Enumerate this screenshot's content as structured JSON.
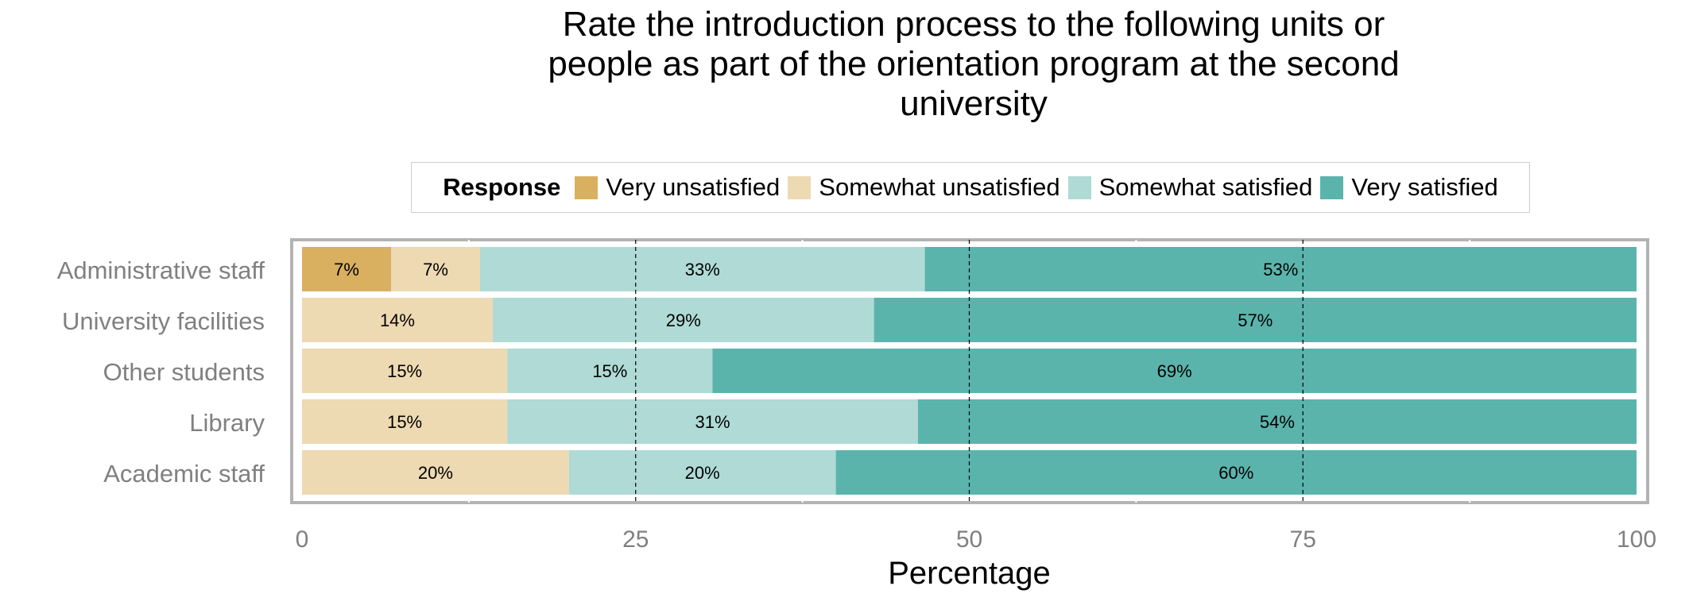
{
  "chart_data": {
    "type": "bar",
    "orientation": "horizontal",
    "stacked": true,
    "title": "Rate the introduction process to the following units or\npeople as part of the orientation program at the second\nuniversity",
    "xlabel": "Percentage",
    "ylabel": "",
    "xlim": [
      0,
      100
    ],
    "xticks": [
      0,
      25,
      50,
      75,
      100
    ],
    "grid": true,
    "legend_title": "Response",
    "legend_position": "top",
    "categories": [
      "Administrative staff",
      "University facilities",
      "Other students",
      "Library",
      "Academic staff"
    ],
    "series": [
      {
        "name": "Very unsatisfied",
        "color": "#D9AF60",
        "values": [
          6.67,
          0,
          0,
          0,
          0
        ],
        "labels": [
          "7%",
          "",
          "",
          "",
          ""
        ]
      },
      {
        "name": "Somewhat unsatisfied",
        "color": "#EDD9B2",
        "values": [
          6.67,
          14.29,
          15.38,
          15.38,
          20
        ],
        "labels": [
          "7%",
          "14%",
          "15%",
          "15%",
          "20%"
        ]
      },
      {
        "name": "Somewhat satisfied",
        "color": "#AFDAD6",
        "values": [
          33.33,
          28.57,
          15.38,
          30.77,
          20
        ],
        "labels": [
          "33%",
          "29%",
          "15%",
          "31%",
          "20%"
        ]
      },
      {
        "name": "Very satisfied",
        "color": "#5BB4AC",
        "values": [
          53.33,
          57.14,
          69.23,
          53.85,
          60
        ],
        "labels": [
          "53%",
          "57%",
          "69%",
          "54%",
          "60%"
        ]
      }
    ]
  }
}
